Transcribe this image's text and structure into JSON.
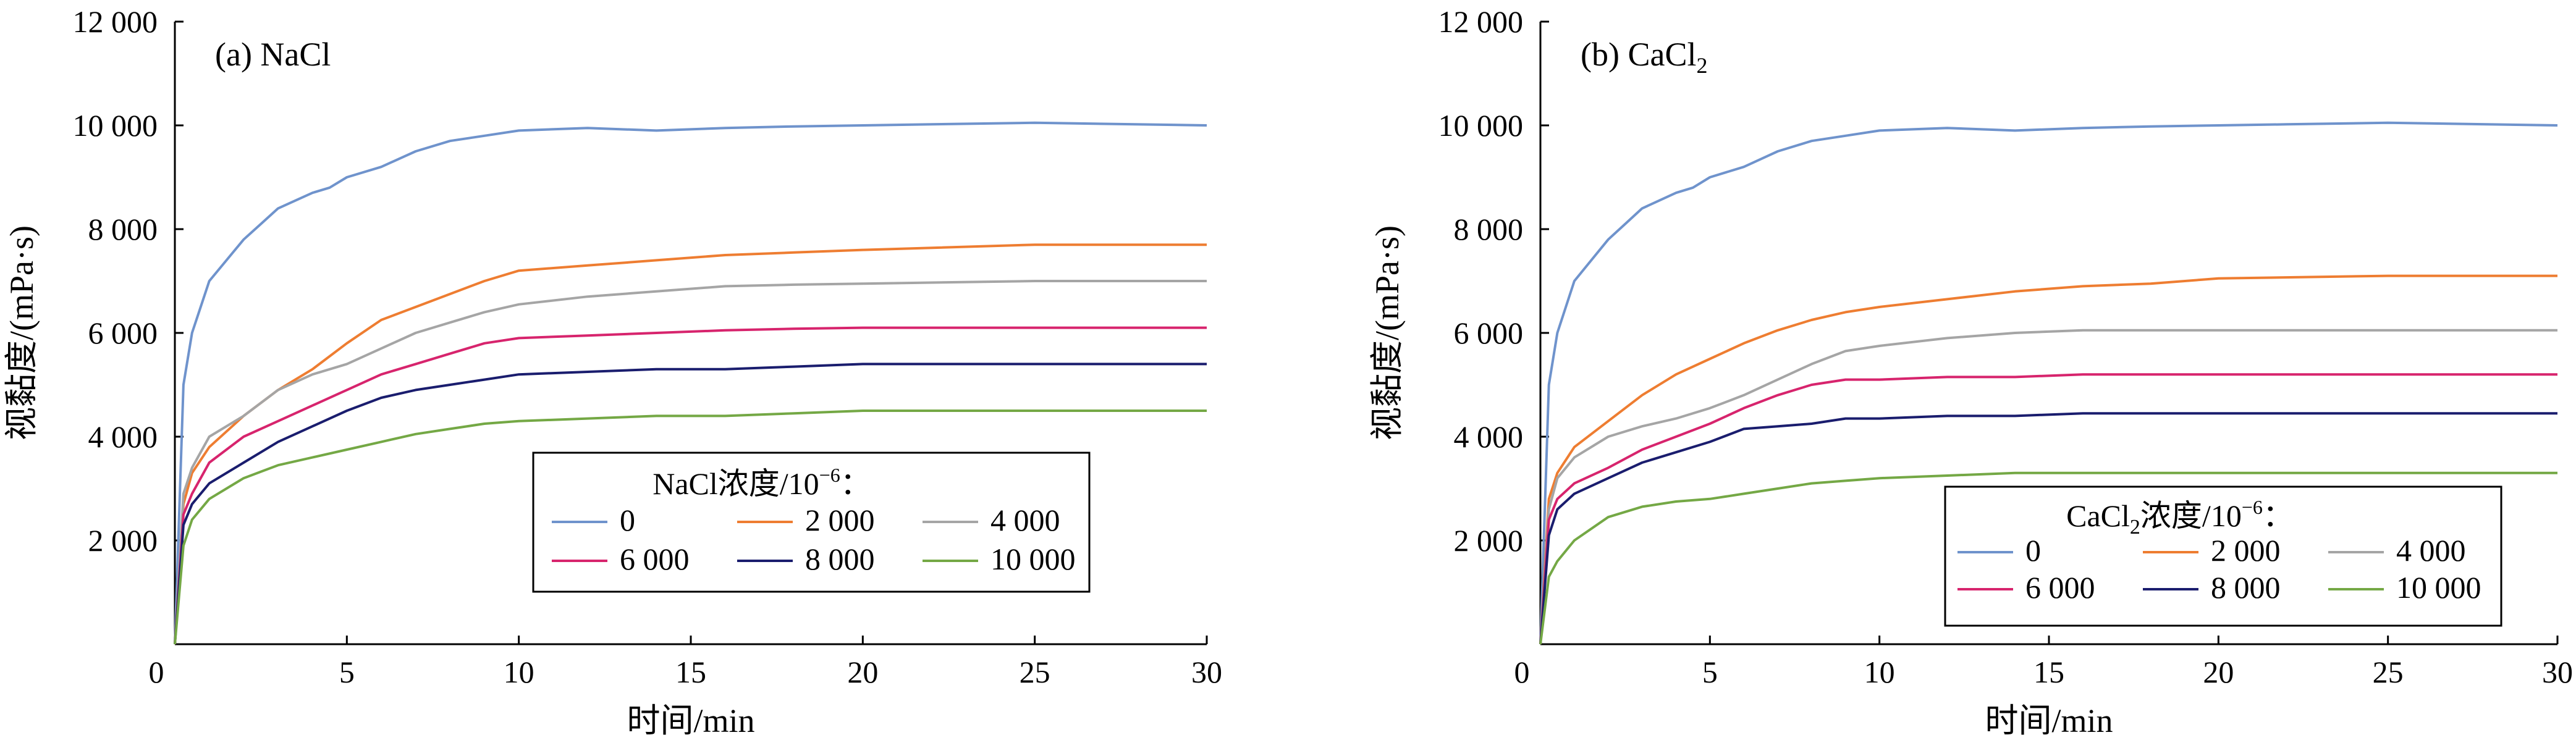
{
  "figure": {
    "panels": [
      {
        "label_prefix": "(a) NaCl",
        "label_sub": "",
        "legend_title": "NaCl浓度/10",
        "legend_title_sub": "",
        "legend_title_tail": "NaCl浓度/10",
        "legend_exp": "−6",
        "legend_colon": "："
      },
      {
        "label_prefix": "(b) CaCl",
        "label_sub": "2",
        "legend_title": "CaCl",
        "legend_title_sub": "2",
        "legend_title_tail": "浓度/10",
        "legend_exp": "−6",
        "legend_colon": "："
      }
    ]
  },
  "chart_data": [
    {
      "type": "line",
      "title": "(a) NaCl",
      "xlabel": "时间/min",
      "ylabel": "视黏度/(mPa·s)",
      "xlim": [
        0,
        30
      ],
      "ylim": [
        0,
        12000
      ],
      "xticks": [
        0,
        5,
        10,
        15,
        20,
        25,
        30
      ],
      "xtick_labels": [
        "0",
        "5",
        "10",
        "15",
        "20",
        "25",
        "30"
      ],
      "yticks": [
        2000,
        4000,
        6000,
        8000,
        10000,
        12000
      ],
      "ytick_labels": [
        "2 000",
        "4 000",
        "6 000",
        "8 000",
        "10 000",
        "12 000"
      ],
      "grid": false,
      "legend_placement": "lower-right",
      "legend_title": "NaCl浓度/10⁻⁶：",
      "series": [
        {
          "name": "0",
          "color": "#6f93cc",
          "x": [
            0,
            0.25,
            0.5,
            1,
            1.5,
            2,
            2.5,
            3,
            3.5,
            4,
            4.5,
            5,
            6,
            7,
            8,
            9,
            10,
            12,
            14,
            16,
            18,
            20,
            22,
            25,
            30
          ],
          "y": [
            0,
            5000,
            6000,
            7000,
            7400,
            7800,
            8100,
            8400,
            8550,
            8700,
            8800,
            9000,
            9200,
            9500,
            9700,
            9800,
            9900,
            9950,
            9900,
            9950,
            9980,
            10000,
            10020,
            10050,
            10000
          ]
        },
        {
          "name": "2 000",
          "color": "#ee7d31",
          "x": [
            0,
            0.25,
            0.5,
            1,
            2,
            3,
            4,
            5,
            6,
            7,
            8,
            9,
            10,
            12,
            14,
            16,
            18,
            20,
            25,
            30
          ],
          "y": [
            0,
            2700,
            3300,
            3800,
            4400,
            4900,
            5300,
            5800,
            6250,
            6500,
            6750,
            7000,
            7200,
            7300,
            7400,
            7500,
            7550,
            7600,
            7700,
            7700
          ]
        },
        {
          "name": "4 000",
          "color": "#a5a5a5",
          "x": [
            0,
            0.25,
            0.5,
            1,
            2,
            3,
            4,
            5,
            6,
            7,
            8,
            9,
            10,
            12,
            14,
            16,
            18,
            20,
            25,
            30
          ],
          "y": [
            0,
            2900,
            3400,
            4000,
            4400,
            4900,
            5200,
            5400,
            5700,
            6000,
            6200,
            6400,
            6550,
            6700,
            6800,
            6900,
            6930,
            6950,
            7000,
            7000
          ]
        },
        {
          "name": "6 000",
          "color": "#d7246d",
          "x": [
            0,
            0.25,
            0.5,
            1,
            2,
            3,
            4,
            5,
            6,
            7,
            8,
            9,
            10,
            12,
            14,
            16,
            18,
            20,
            25,
            30
          ],
          "y": [
            0,
            2500,
            2900,
            3500,
            4000,
            4300,
            4600,
            4900,
            5200,
            5400,
            5600,
            5800,
            5900,
            5950,
            6000,
            6050,
            6080,
            6100,
            6100,
            6100
          ]
        },
        {
          "name": "8 000",
          "color": "#1a1d6e",
          "x": [
            0,
            0.25,
            0.5,
            1,
            2,
            3,
            4,
            5,
            6,
            7,
            8,
            9,
            10,
            12,
            14,
            16,
            18,
            20,
            25,
            30
          ],
          "y": [
            0,
            2300,
            2700,
            3100,
            3500,
            3900,
            4200,
            4500,
            4750,
            4900,
            5000,
            5100,
            5200,
            5250,
            5300,
            5300,
            5350,
            5400,
            5400,
            5400
          ]
        },
        {
          "name": "10 000",
          "color": "#74a845",
          "x": [
            0,
            0.25,
            0.5,
            1,
            2,
            3,
            4,
            5,
            6,
            7,
            8,
            9,
            10,
            12,
            14,
            16,
            18,
            20,
            25,
            30
          ],
          "y": [
            0,
            1900,
            2400,
            2800,
            3200,
            3450,
            3600,
            3750,
            3900,
            4050,
            4150,
            4250,
            4300,
            4350,
            4400,
            4400,
            4450,
            4500,
            4500,
            4500
          ]
        }
      ]
    },
    {
      "type": "line",
      "title": "(b) CaCl₂",
      "xlabel": "时间/min",
      "ylabel": "视黏度/(mPa·s)",
      "xlim": [
        0,
        30
      ],
      "ylim": [
        0,
        12000
      ],
      "xticks": [
        0,
        5,
        10,
        15,
        20,
        25,
        30
      ],
      "xtick_labels": [
        "0",
        "5",
        "10",
        "15",
        "20",
        "25",
        "30"
      ],
      "yticks": [
        2000,
        4000,
        6000,
        8000,
        10000,
        12000
      ],
      "ytick_labels": [
        "2 000",
        "4 000",
        "6 000",
        "8 000",
        "10 000",
        "12 000"
      ],
      "grid": false,
      "legend_placement": "lower-right",
      "legend_title": "CaCl₂浓度/10⁻⁶：",
      "series": [
        {
          "name": "0",
          "color": "#6f93cc",
          "x": [
            0,
            0.25,
            0.5,
            1,
            1.5,
            2,
            2.5,
            3,
            3.5,
            4,
            4.5,
            5,
            6,
            7,
            8,
            9,
            10,
            12,
            14,
            16,
            18,
            20,
            22,
            25,
            30
          ],
          "y": [
            0,
            5000,
            6000,
            7000,
            7400,
            7800,
            8100,
            8400,
            8550,
            8700,
            8800,
            9000,
            9200,
            9500,
            9700,
            9800,
            9900,
            9950,
            9900,
            9950,
            9980,
            10000,
            10020,
            10050,
            10000
          ]
        },
        {
          "name": "2 000",
          "color": "#ee7d31",
          "x": [
            0,
            0.25,
            0.5,
            1,
            2,
            3,
            4,
            5,
            6,
            7,
            8,
            9,
            10,
            12,
            14,
            16,
            18,
            20,
            25,
            30
          ],
          "y": [
            0,
            2800,
            3300,
            3800,
            4300,
            4800,
            5200,
            5500,
            5800,
            6050,
            6250,
            6400,
            6500,
            6650,
            6800,
            6900,
            6950,
            7050,
            7100,
            7100
          ]
        },
        {
          "name": "4 000",
          "color": "#a5a5a5",
          "x": [
            0,
            0.25,
            0.5,
            1,
            2,
            3,
            4,
            5,
            6,
            7,
            8,
            9,
            10,
            12,
            14,
            16,
            18,
            20,
            25,
            30
          ],
          "y": [
            0,
            2600,
            3200,
            3600,
            4000,
            4200,
            4350,
            4550,
            4800,
            5100,
            5400,
            5650,
            5750,
            5900,
            6000,
            6050,
            6050,
            6050,
            6050,
            6050
          ]
        },
        {
          "name": "6 000",
          "color": "#d7246d",
          "x": [
            0,
            0.25,
            0.5,
            1,
            2,
            3,
            4,
            5,
            6,
            7,
            8,
            9,
            10,
            12,
            14,
            16,
            18,
            20,
            25,
            30
          ],
          "y": [
            0,
            2400,
            2800,
            3100,
            3400,
            3750,
            4000,
            4250,
            4550,
            4800,
            5000,
            5100,
            5100,
            5150,
            5150,
            5200,
            5200,
            5200,
            5200,
            5200
          ]
        },
        {
          "name": "8 000",
          "color": "#1a1d6e",
          "x": [
            0,
            0.25,
            0.5,
            1,
            2,
            3,
            4,
            5,
            6,
            7,
            8,
            9,
            10,
            12,
            14,
            16,
            18,
            20,
            25,
            30
          ],
          "y": [
            0,
            2100,
            2600,
            2900,
            3200,
            3500,
            3700,
            3900,
            4150,
            4200,
            4250,
            4350,
            4350,
            4400,
            4400,
            4450,
            4450,
            4450,
            4450,
            4450
          ]
        },
        {
          "name": "10 000",
          "color": "#74a845",
          "x": [
            0,
            0.25,
            0.5,
            1,
            2,
            3,
            4,
            5,
            6,
            7,
            8,
            9,
            10,
            12,
            14,
            16,
            18,
            20,
            25,
            30
          ],
          "y": [
            0,
            1300,
            1600,
            2000,
            2450,
            2650,
            2750,
            2800,
            2900,
            3000,
            3100,
            3150,
            3200,
            3250,
            3300,
            3300,
            3300,
            3300,
            3300,
            3300
          ]
        }
      ]
    }
  ]
}
